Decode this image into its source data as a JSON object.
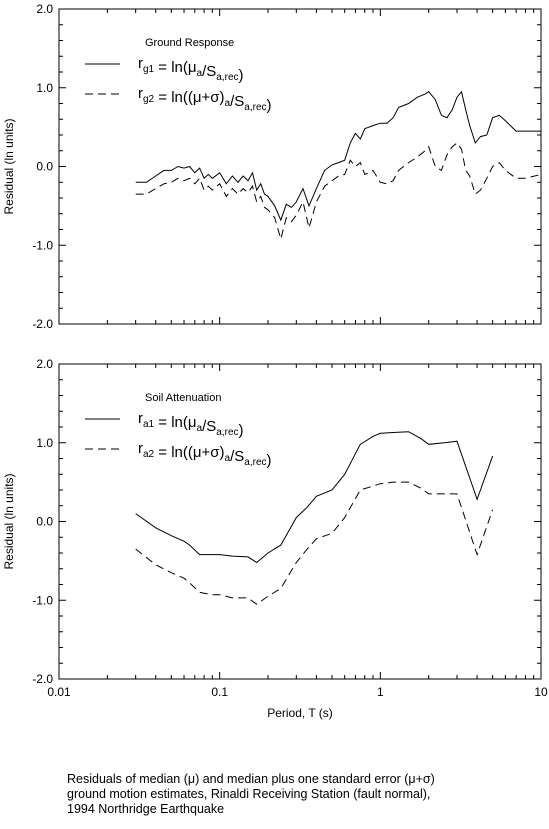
{
  "caption": {
    "line1": "Residuals of median (μ) and median plus one standard error (μ+σ)",
    "line2": "ground motion estimates, Rinaldi Receiving Station (fault normal),",
    "line3": "1994 Northridge Earthquake"
  },
  "chart_data": [
    {
      "type": "line",
      "legend_title": "Ground Response",
      "x_scale": "log",
      "xlim": [
        0.01,
        10
      ],
      "ylim": [
        -2.0,
        2.0
      ],
      "ylabel": "Residual (ln units)",
      "xlabel": "",
      "y_ticks": [
        "2.0",
        "1.0",
        "0.0",
        "-1.0",
        "-2.0"
      ],
      "x_tick_labels_shown": false,
      "series": [
        {
          "name": "r_g1 = ln(μ_a/S_a,rec)",
          "legend": {
            "main": "r",
            "sub1": "g1",
            "mid": " = ln(μ",
            "sub2": "a",
            "mid2": "/S",
            "sub3": "a,rec",
            "end": ")"
          },
          "style": "solid",
          "x": [
            0.03,
            0.035,
            0.04,
            0.045,
            0.05,
            0.055,
            0.06,
            0.065,
            0.07,
            0.075,
            0.08,
            0.085,
            0.09,
            0.1,
            0.11,
            0.12,
            0.13,
            0.14,
            0.15,
            0.16,
            0.17,
            0.18,
            0.19,
            0.2,
            0.22,
            0.24,
            0.26,
            0.28,
            0.3,
            0.33,
            0.36,
            0.4,
            0.45,
            0.5,
            0.55,
            0.6,
            0.65,
            0.7,
            0.75,
            0.8,
            0.9,
            1.0,
            1.1,
            1.2,
            1.3,
            1.5,
            1.7,
            1.9,
            2.0,
            2.2,
            2.4,
            2.6,
            2.8,
            3.0,
            3.2,
            3.4,
            3.6,
            3.9,
            4.2,
            4.6,
            5.0,
            5.5,
            6.0,
            7.0,
            8.0,
            10.0
          ],
          "y": [
            -0.2,
            -0.2,
            -0.12,
            -0.05,
            -0.05,
            0.0,
            -0.02,
            0.0,
            -0.08,
            -0.02,
            -0.15,
            -0.1,
            -0.15,
            -0.08,
            -0.22,
            -0.12,
            -0.2,
            -0.12,
            -0.18,
            -0.08,
            -0.3,
            -0.22,
            -0.35,
            -0.38,
            -0.5,
            -0.68,
            -0.48,
            -0.52,
            -0.45,
            -0.28,
            -0.5,
            -0.28,
            -0.05,
            0.02,
            0.05,
            0.08,
            0.3,
            0.42,
            0.35,
            0.48,
            0.52,
            0.55,
            0.55,
            0.62,
            0.75,
            0.8,
            0.88,
            0.92,
            0.95,
            0.85,
            0.65,
            0.62,
            0.72,
            0.88,
            0.95,
            0.72,
            0.52,
            0.3,
            0.38,
            0.4,
            0.62,
            0.65,
            0.58,
            0.45,
            0.45,
            0.45
          ]
        },
        {
          "name": "r_g2 = ln((μ+σ)_a/S_a,rec)",
          "legend": {
            "main": "r",
            "sub1": "g2",
            "mid": " = ln((μ+σ)",
            "sub2": "a",
            "mid2": "/S",
            "sub3": "a,rec",
            "end": ")"
          },
          "style": "dashed",
          "x": [
            0.03,
            0.035,
            0.04,
            0.045,
            0.05,
            0.055,
            0.06,
            0.065,
            0.07,
            0.075,
            0.08,
            0.085,
            0.09,
            0.1,
            0.11,
            0.12,
            0.13,
            0.14,
            0.15,
            0.16,
            0.17,
            0.18,
            0.19,
            0.2,
            0.22,
            0.24,
            0.26,
            0.28,
            0.3,
            0.33,
            0.36,
            0.4,
            0.45,
            0.5,
            0.55,
            0.6,
            0.65,
            0.7,
            0.75,
            0.8,
            0.9,
            1.0,
            1.1,
            1.2,
            1.3,
            1.5,
            1.7,
            1.9,
            2.0,
            2.2,
            2.4,
            2.6,
            2.8,
            3.0,
            3.2,
            3.4,
            3.6,
            3.9,
            4.2,
            4.6,
            5.0,
            5.5,
            6.0,
            7.0,
            8.0,
            10.0
          ],
          "y": [
            -0.35,
            -0.35,
            -0.28,
            -0.22,
            -0.2,
            -0.15,
            -0.18,
            -0.15,
            -0.22,
            -0.15,
            -0.3,
            -0.25,
            -0.3,
            -0.22,
            -0.38,
            -0.28,
            -0.35,
            -0.28,
            -0.33,
            -0.25,
            -0.45,
            -0.38,
            -0.52,
            -0.55,
            -0.65,
            -0.92,
            -0.65,
            -0.7,
            -0.62,
            -0.45,
            -0.78,
            -0.45,
            -0.25,
            -0.18,
            -0.12,
            -0.1,
            0.08,
            0.0,
            0.05,
            -0.1,
            -0.05,
            -0.2,
            -0.22,
            -0.18,
            -0.05,
            0.05,
            0.12,
            0.2,
            0.25,
            0.0,
            -0.05,
            0.15,
            0.25,
            0.3,
            0.22,
            -0.05,
            -0.12,
            -0.35,
            -0.3,
            -0.15,
            0.0,
            0.05,
            -0.05,
            -0.15,
            -0.15,
            -0.1
          ]
        }
      ]
    },
    {
      "type": "line",
      "legend_title": "Soil Attenuation",
      "x_scale": "log",
      "xlim": [
        0.01,
        10
      ],
      "ylim": [
        -2.0,
        2.0
      ],
      "ylabel": "Residual (ln units)",
      "xlabel": "Period, T (s)",
      "y_ticks": [
        "2.0",
        "1.0",
        "0.0",
        "-1.0",
        "-2.0"
      ],
      "x_ticks": [
        "0.01",
        "0.1",
        "1",
        "10"
      ],
      "series": [
        {
          "name": "r_a1 = ln(μ_a/S_a,rec)",
          "legend": {
            "main": "r",
            "sub1": "a1",
            "mid": " = ln(μ",
            "sub2": "a",
            "mid2": "/S",
            "sub3": "a,rec",
            "end": ")"
          },
          "style": "solid",
          "x": [
            0.03,
            0.04,
            0.05,
            0.06,
            0.065,
            0.075,
            0.09,
            0.1,
            0.12,
            0.15,
            0.17,
            0.2,
            0.24,
            0.3,
            0.35,
            0.4,
            0.5,
            0.6,
            0.75,
            0.9,
            1.0,
            1.2,
            1.5,
            1.8,
            2.0,
            2.5,
            3.0,
            4.0,
            5.0
          ],
          "y": [
            0.1,
            -0.08,
            -0.18,
            -0.25,
            -0.3,
            -0.42,
            -0.42,
            -0.42,
            -0.44,
            -0.45,
            -0.52,
            -0.4,
            -0.3,
            0.05,
            0.18,
            0.32,
            0.4,
            0.6,
            0.98,
            1.08,
            1.12,
            1.13,
            1.14,
            1.05,
            0.98,
            1.0,
            1.02,
            0.28,
            0.83
          ]
        },
        {
          "name": "r_a2 = ln((μ+σ)_a/S_a,rec)",
          "legend": {
            "main": "r",
            "sub1": "a2",
            "mid": " = ln((μ+σ)",
            "sub2": "a",
            "mid2": "/S",
            "sub3": "a,rec",
            "end": ")"
          },
          "style": "dashed",
          "x": [
            0.03,
            0.04,
            0.05,
            0.06,
            0.065,
            0.075,
            0.09,
            0.1,
            0.12,
            0.15,
            0.17,
            0.2,
            0.24,
            0.3,
            0.35,
            0.4,
            0.5,
            0.6,
            0.75,
            0.9,
            1.0,
            1.2,
            1.5,
            1.8,
            2.0,
            2.5,
            3.0,
            4.0,
            5.0
          ],
          "y": [
            -0.35,
            -0.55,
            -0.65,
            -0.72,
            -0.78,
            -0.9,
            -0.93,
            -0.93,
            -0.97,
            -0.97,
            -1.05,
            -0.95,
            -0.85,
            -0.52,
            -0.35,
            -0.22,
            -0.15,
            0.05,
            0.4,
            0.45,
            0.48,
            0.5,
            0.5,
            0.42,
            0.35,
            0.35,
            0.35,
            -0.42,
            0.15
          ]
        }
      ]
    }
  ]
}
